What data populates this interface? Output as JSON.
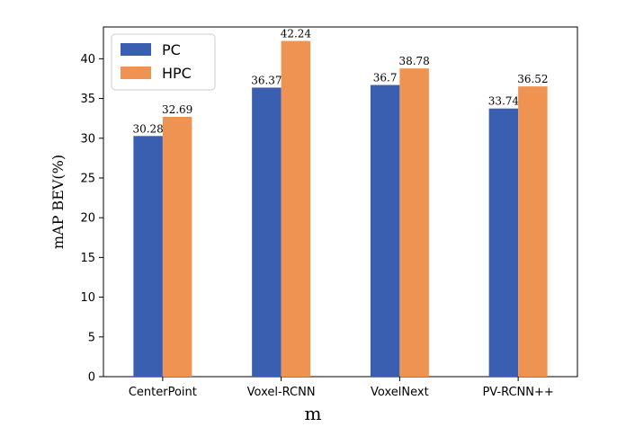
{
  "chart_data": {
    "type": "bar",
    "title": "",
    "xlabel": "",
    "ylabel": "mAP BEV(%)",
    "ylim": [
      0,
      44
    ],
    "yticks": [
      0,
      5,
      10,
      15,
      20,
      25,
      30,
      35,
      40
    ],
    "categories": [
      "CenterPoint",
      "Voxel-RCNN",
      "VoxelNext",
      "PV-RCNN++"
    ],
    "series": [
      {
        "name": "PC",
        "color": "#3a5fb0",
        "values": [
          30.28,
          36.37,
          36.7,
          33.74
        ],
        "labels": [
          "30.28",
          "36.37",
          "36.7",
          "33.74"
        ]
      },
      {
        "name": "HPC",
        "color": "#ef9352",
        "values": [
          32.69,
          42.24,
          38.78,
          36.52
        ],
        "labels": [
          "32.69",
          "42.24",
          "38.78",
          "36.52"
        ]
      }
    ],
    "legend": "top-left",
    "grid": false
  },
  "caption": "m"
}
